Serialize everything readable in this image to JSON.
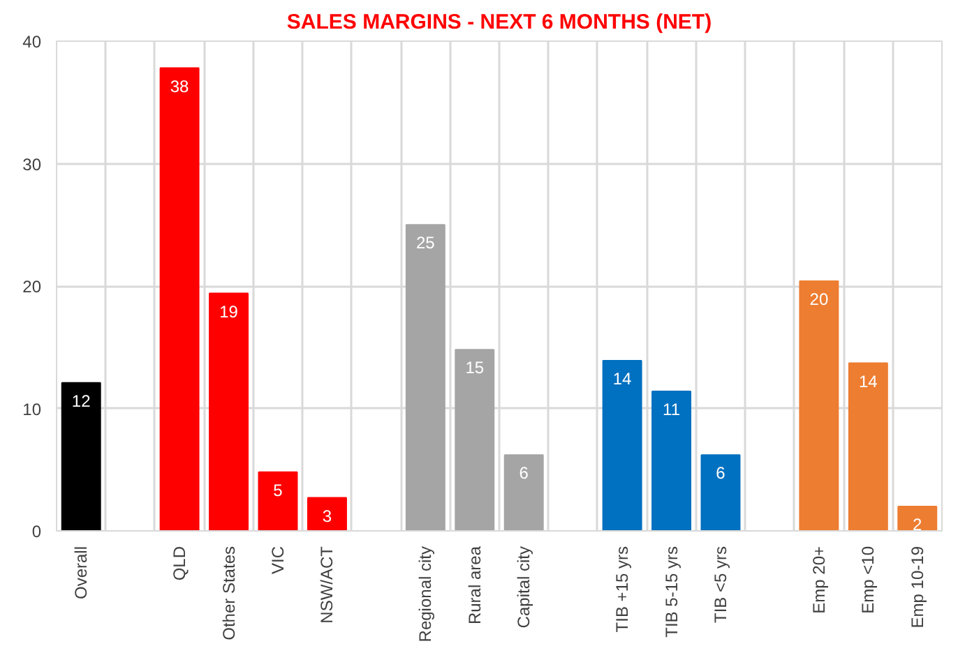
{
  "chart_data": {
    "type": "bar",
    "title": "SALES MARGINS - NEXT 6 MONTHS (NET)",
    "categories": [
      "Overall",
      null,
      "QLD",
      "Other States",
      "VIC",
      "NSW/ACT",
      null,
      "Regional city",
      "Rural area",
      "Capital city",
      null,
      "TIB +15 yrs",
      "TIB 5-15 yrs",
      "TIB <5 yrs",
      null,
      "Emp 20+",
      "Emp <10",
      "Emp 10-19"
    ],
    "values": [
      12.1,
      null,
      37.8,
      19.4,
      4.8,
      2.7,
      null,
      25.0,
      14.8,
      6.2,
      null,
      13.9,
      11.4,
      6.2,
      null,
      20.4,
      13.7,
      2.0
    ],
    "value_labels": [
      "12",
      null,
      "38",
      "19",
      "5",
      "3",
      null,
      "25",
      "15",
      "6",
      null,
      "14",
      "11",
      "6",
      null,
      "20",
      "14",
      "2"
    ],
    "colors": [
      "#000000",
      null,
      "#ff0000",
      "#ff0000",
      "#ff0000",
      "#ff0000",
      null,
      "#a5a5a5",
      "#a5a5a5",
      "#a5a5a5",
      null,
      "#0070c0",
      "#0070c0",
      "#0070c0",
      null,
      "#ed7d31",
      "#ed7d31",
      "#ed7d31"
    ],
    "ylim": [
      0,
      40
    ],
    "yticks": [
      0,
      10,
      20,
      30,
      40
    ],
    "grid": true
  }
}
